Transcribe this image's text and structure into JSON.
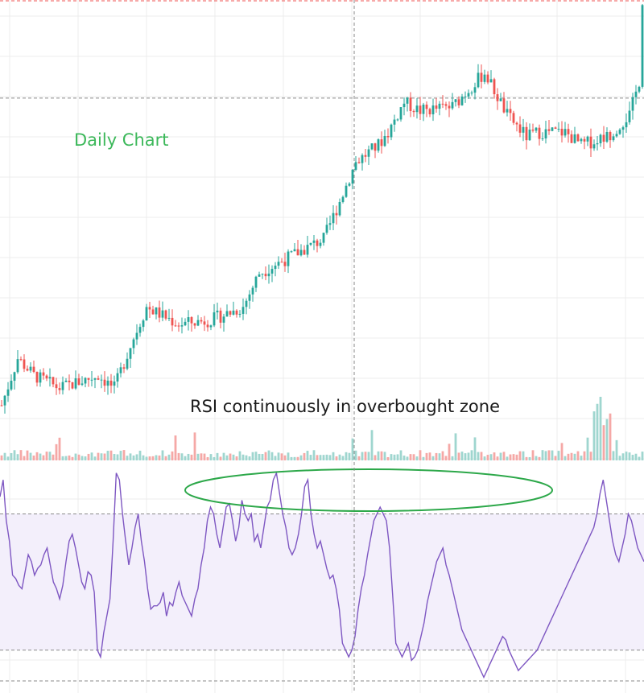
{
  "chart_data": {
    "type": "candlestick",
    "panes": [
      "price",
      "volume",
      "rsi"
    ],
    "annotations": {
      "chart_label": "Daily Chart",
      "rsi_note": "RSI continuously in overbought zone",
      "highlight": "ellipse around RSI peaks near the overbought line"
    },
    "colors": {
      "up": "#26a69a",
      "down": "#ef5350",
      "volume_up": "#9fd6cf",
      "volume_down": "#f5a8a6",
      "rsi_line": "#7e57c2",
      "rsi_band_fill": "#f3effb",
      "grid": "#ececec",
      "dashed": "#8a8a8a",
      "label_green": "#3cb85a",
      "highlight_stroke": "#2da84a"
    },
    "price": {
      "ylim": [
        0,
        100
      ],
      "reference_level": 77,
      "last_close_level": 100
    },
    "rsi": {
      "ylim": [
        20,
        85
      ],
      "overbought": 70,
      "oversold": 30,
      "band": [
        30,
        70
      ],
      "values": [
        75,
        80,
        68,
        62,
        52,
        51,
        49,
        48,
        53,
        58,
        56,
        52,
        54,
        55,
        58,
        60,
        55,
        50,
        48,
        45,
        49,
        56,
        62,
        64,
        60,
        55,
        50,
        48,
        53,
        52,
        47,
        30,
        28,
        35,
        40,
        45,
        62,
        82,
        80,
        70,
        62,
        55,
        60,
        66,
        70,
        62,
        56,
        48,
        42,
        43,
        43,
        44,
        47,
        40,
        44,
        43,
        47,
        50,
        46,
        44,
        42,
        40,
        45,
        48,
        55,
        60,
        68,
        72,
        70,
        64,
        60,
        66,
        72,
        73,
        68,
        62,
        66,
        74,
        70,
        68,
        70,
        62,
        64,
        60,
        66,
        72,
        74,
        80,
        82,
        76,
        70,
        66,
        60,
        58,
        60,
        64,
        70,
        78,
        80,
        70,
        64,
        60,
        62,
        58,
        54,
        51,
        52,
        48,
        42,
        32,
        30,
        28,
        30,
        34,
        42,
        48,
        52,
        58,
        63,
        68,
        70,
        72,
        70,
        68,
        60,
        46,
        32,
        30,
        28,
        30,
        32,
        27,
        28,
        30,
        34,
        38,
        44,
        48,
        52,
        56,
        58,
        60,
        55,
        52,
        48,
        44,
        40,
        36,
        34,
        32,
        30,
        28,
        26,
        24,
        22,
        24,
        26,
        28,
        30,
        32,
        34,
        33,
        30,
        28,
        26,
        24,
        25,
        26,
        27,
        28,
        29,
        30,
        32,
        34,
        36,
        38,
        40,
        42,
        44,
        46,
        48,
        50,
        52,
        54,
        56,
        58,
        60,
        62,
        64,
        66,
        70,
        76,
        80,
        74,
        68,
        62,
        58,
        56,
        60,
        64,
        70,
        68,
        64,
        60,
        58,
        56
      ]
    }
  }
}
